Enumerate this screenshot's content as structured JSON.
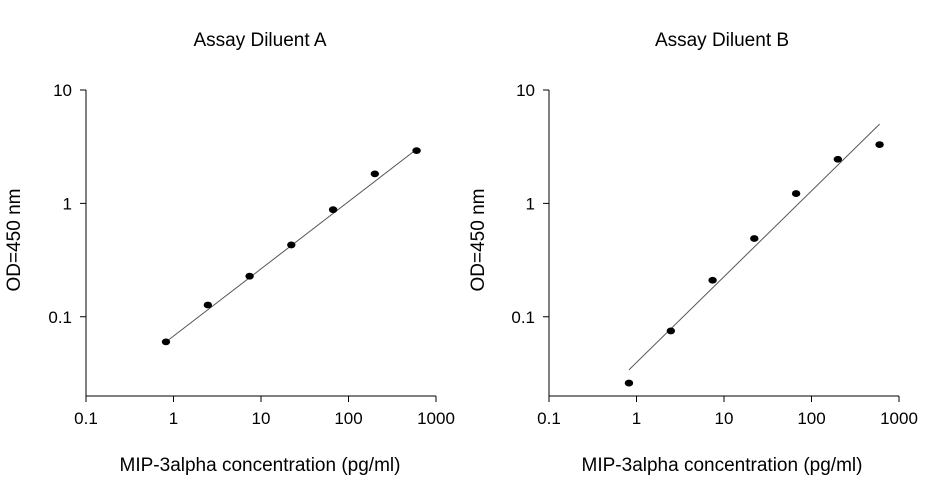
{
  "chart_data": [
    {
      "type": "scatter",
      "title": "Assay Diluent A",
      "xlabel": "MIP-3alpha concentration (pg/ml)",
      "ylabel": "OD=450 nm",
      "x_scale": "log",
      "y_scale": "log",
      "xlim": [
        0.1,
        1000
      ],
      "ylim": [
        0.02,
        10
      ],
      "x_ticks": [
        "0.1",
        "1",
        "10",
        "100",
        "1000"
      ],
      "y_ticks": [
        "0.1",
        "1",
        "10"
      ],
      "grid": false,
      "series": [
        {
          "x": [
            0.82,
            2.47,
            7.41,
            22.2,
            66.7,
            200,
            600
          ],
          "y": [
            0.06,
            0.127,
            0.228,
            0.43,
            0.88,
            1.82,
            2.92
          ]
        }
      ],
      "fit_line": {
        "x": [
          0.82,
          600
        ],
        "y": [
          0.06,
          3.0
        ]
      }
    },
    {
      "type": "scatter",
      "title": "Assay Diluent B",
      "xlabel": "MIP-3alpha concentration (pg/ml)",
      "ylabel": "OD=450 nm",
      "x_scale": "log",
      "y_scale": "log",
      "xlim": [
        0.1,
        1000
      ],
      "ylim": [
        0.02,
        10
      ],
      "x_ticks": [
        "0.1",
        "1",
        "10",
        "100",
        "1000"
      ],
      "y_ticks": [
        "0.1",
        "1",
        "10"
      ],
      "grid": false,
      "series": [
        {
          "x": [
            0.82,
            2.47,
            7.41,
            22.2,
            66.7,
            200,
            600
          ],
          "y": [
            0.026,
            0.075,
            0.21,
            0.49,
            1.22,
            2.45,
            3.3
          ]
        }
      ],
      "fit_line": {
        "x": [
          0.82,
          600
        ],
        "y": [
          0.034,
          5.0
        ]
      }
    }
  ]
}
